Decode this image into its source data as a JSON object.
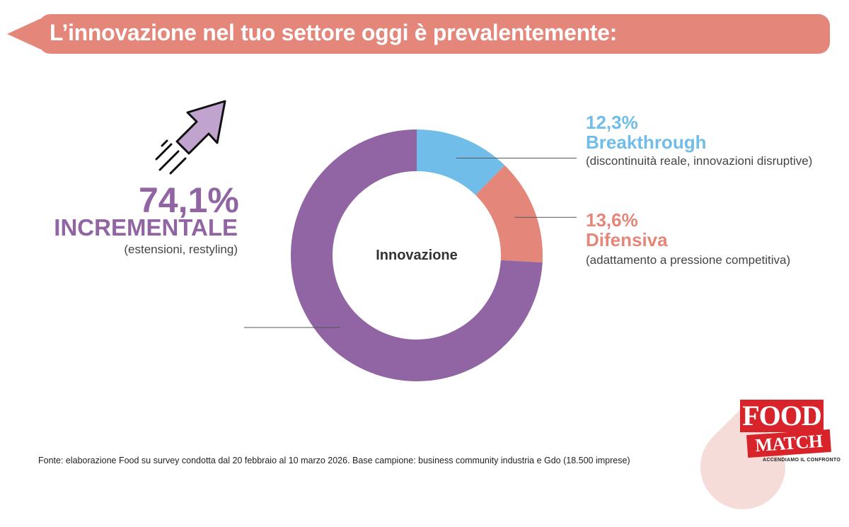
{
  "header": {
    "title": "L’innovazione nel tuo settore oggi è prevalentemente:"
  },
  "chart_data": {
    "type": "pie",
    "variant": "donut",
    "center_label": "Innovazione",
    "slices": [
      {
        "label": "Breakthrough",
        "value": 12.3,
        "value_text": "12,3%",
        "description": "(discontinuità reale, innovazioni disruptive)",
        "color": "#6fbde8"
      },
      {
        "label": "Difensiva",
        "value": 13.6,
        "value_text": "13,6%",
        "description": "(adattamento a pressione competitiva)",
        "color": "#e4877a"
      },
      {
        "label": "INCREMENTALE",
        "value": 74.1,
        "value_text": "74,1%",
        "description": "(estensioni, restyling)",
        "color": "#9165a3"
      }
    ]
  },
  "footnote": "Fonte: elaborazione Food su survey condotta dal 20 febbraio al 10 marzo 2026. Base campione: business community industria e Gdo (18.500 imprese)",
  "logo": {
    "line1": "FOOD",
    "line2": "MATCH",
    "tagline": "ACCENDIAMO IL CONFRONTO"
  },
  "icons": {
    "arrow": "rocket-arrow-icon"
  },
  "colors": {
    "banner": "#e4877a",
    "incremental": "#9165a3",
    "breakthrough": "#6fbde8",
    "difensiva": "#e4877a"
  }
}
